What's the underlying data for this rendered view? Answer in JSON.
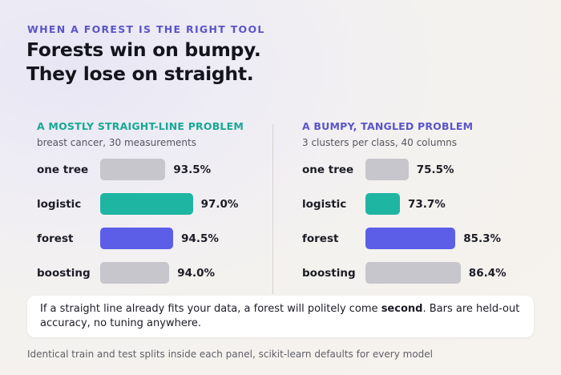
{
  "eyebrow": "WHEN A FOREST IS THE RIGHT TOOL",
  "headline": {
    "line1": "Forests win on bumpy.",
    "line2": "They lose on straight."
  },
  "callout": {
    "before": "If a straight line already fits your data, a forest will politely come ",
    "emphasis": "second",
    "after": ". Bars are held-out accuracy, no tuning anywhere."
  },
  "footnote": "Identical train and test splits inside each panel, scikit-learn defaults for every model",
  "colors": {
    "one tree": "#c6c6cc",
    "logistic": "#1fb5a3",
    "forest": "#5d5ee8",
    "boosting": "#c6c6cc"
  },
  "chart_data": [
    {
      "type": "bar",
      "orientation": "horizontal",
      "title": "A MOSTLY STRAIGHT-LINE PROBLEM",
      "subtitle": "breast cancer, 30 measurements",
      "categories": [
        "one tree",
        "logistic",
        "forest",
        "boosting"
      ],
      "values": [
        93.5,
        97.0,
        94.5,
        94.0
      ],
      "value_labels": [
        "93.5%",
        "97.0%",
        "94.5%",
        "94.0%"
      ],
      "unit": "%",
      "axis_visible": false,
      "grid": false
    },
    {
      "type": "bar",
      "orientation": "horizontal",
      "title": "A BUMPY, TANGLED PROBLEM",
      "subtitle": "3 clusters per class, 40 columns",
      "categories": [
        "one tree",
        "logistic",
        "forest",
        "boosting"
      ],
      "values": [
        75.5,
        73.7,
        85.3,
        86.4
      ],
      "value_labels": [
        "75.5%",
        "73.7%",
        "85.3%",
        "86.4%"
      ],
      "unit": "%",
      "axis_visible": false,
      "grid": false
    }
  ]
}
